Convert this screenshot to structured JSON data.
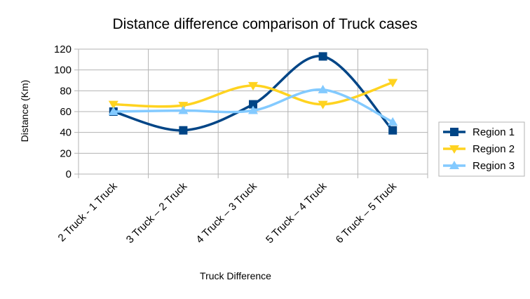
{
  "chart_data": {
    "type": "line",
    "title": "Distance difference comparison of Truck cases",
    "xlabel": "Truck Difference",
    "ylabel": "Distance (Km)",
    "categories": [
      "2 Truck - 1 Truck",
      "3 Truck – 2  Truck",
      "4 Truck – 3 Truck",
      "5 Truck – 4 Truck",
      "6 Truck – 5 Truck"
    ],
    "ylim": [
      0,
      120
    ],
    "yticks": [
      0,
      20,
      40,
      60,
      80,
      100,
      120
    ],
    "grid": true,
    "smooth": true,
    "legend_position": "right",
    "series": [
      {
        "name": "Region 1",
        "values": [
          60,
          42,
          67,
          113,
          42
        ],
        "color": "#004586",
        "marker": "square"
      },
      {
        "name": "Region 2",
        "values": [
          67,
          66,
          85,
          67,
          88
        ],
        "color": "#ffd320",
        "marker": "triangle-down"
      },
      {
        "name": "Region 3",
        "values": [
          60,
          61,
          61,
          81,
          50
        ],
        "color": "#83caff",
        "marker": "triangle-up"
      }
    ]
  }
}
